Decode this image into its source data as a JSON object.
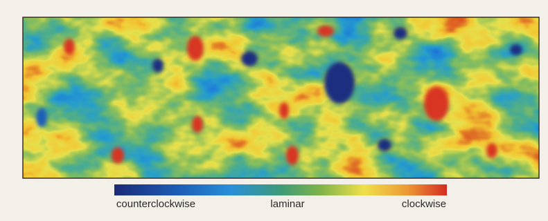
{
  "figure": {
    "colorbar": {
      "labels": [
        "counterclockwise",
        "laminar",
        "clockwise"
      ]
    }
  }
}
